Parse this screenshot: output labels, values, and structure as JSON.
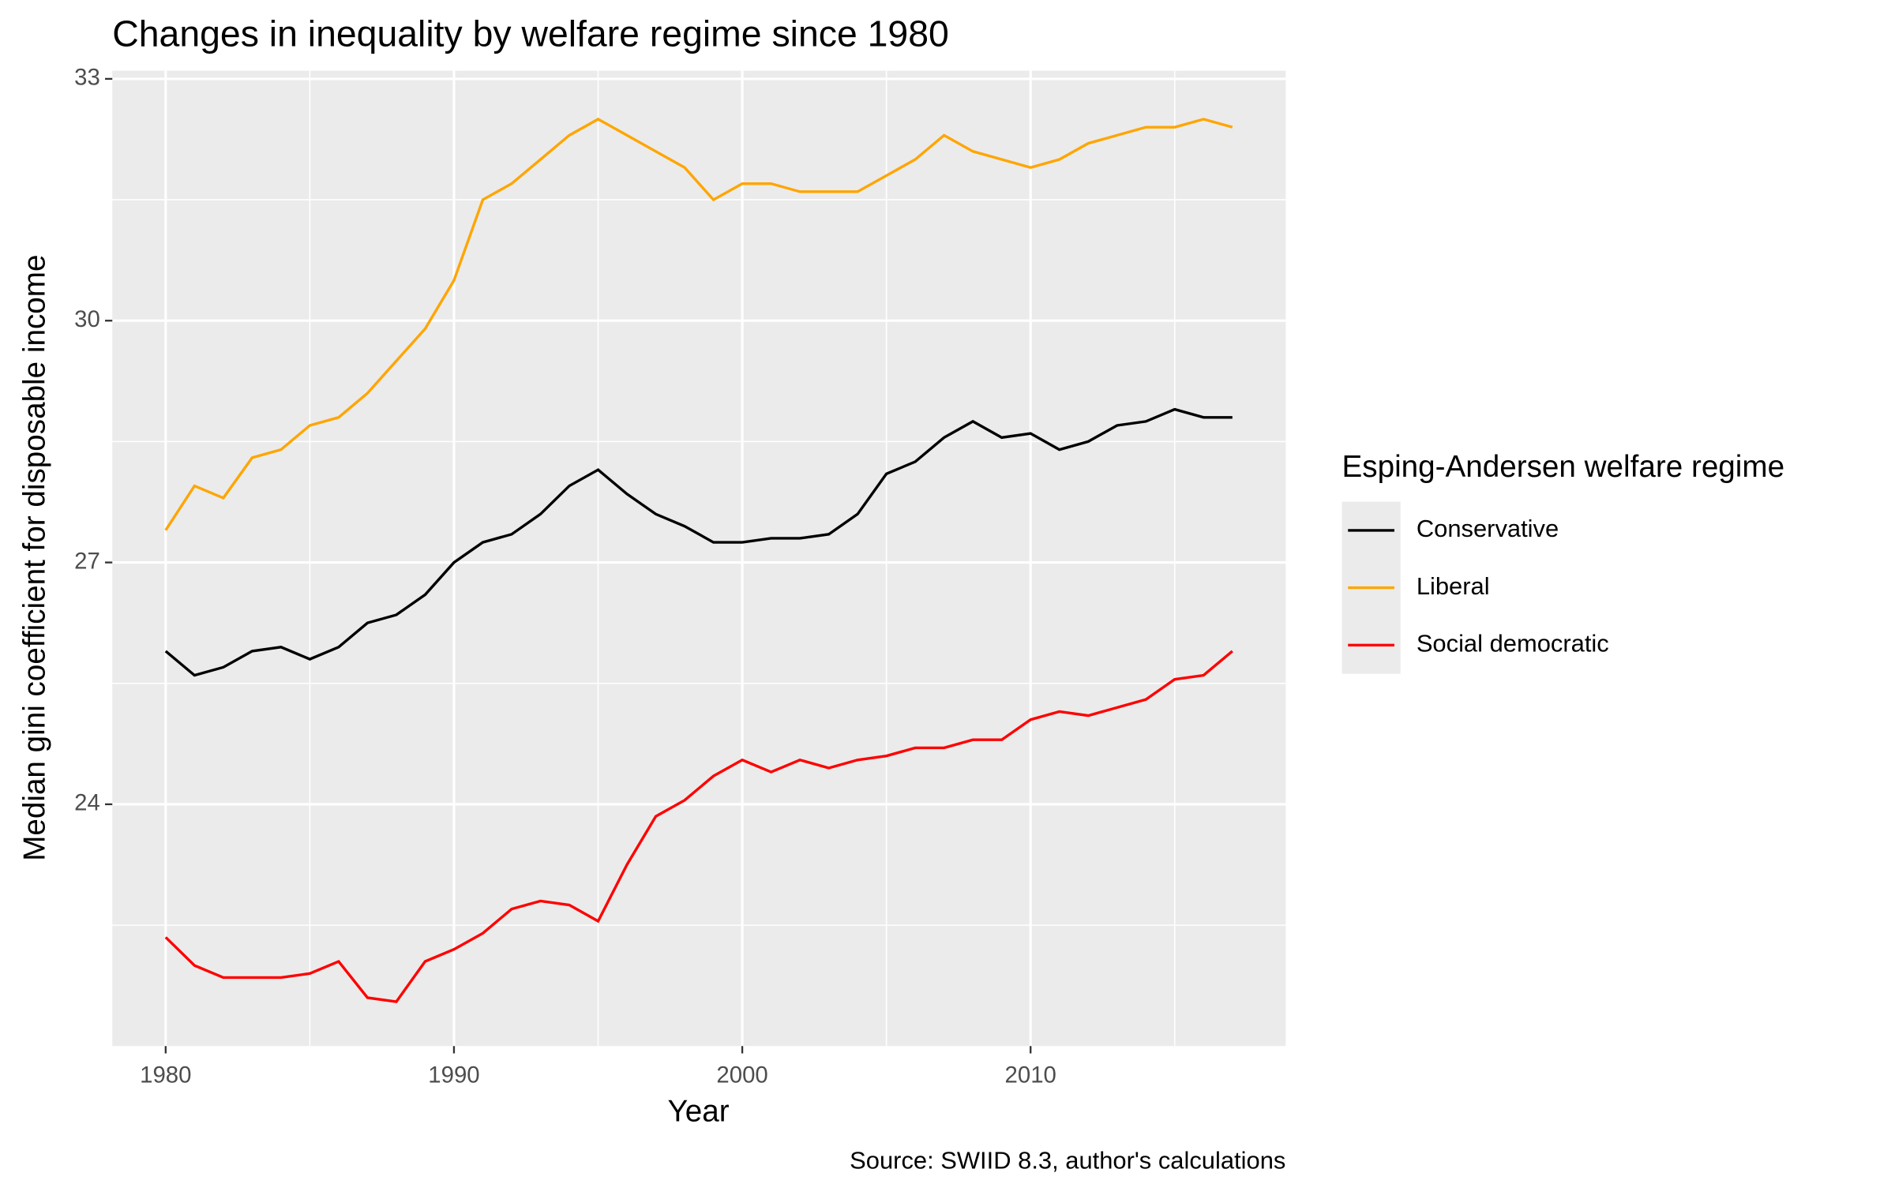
{
  "chart_data": {
    "type": "line",
    "title": "Changes in inequality by welfare regime since 1980",
    "x_label": "Year",
    "y_label": "Median gini coefficient for disposable income",
    "caption": "Source: SWIID 8.3, author's calculations",
    "legend_title": "Esping-Andersen welfare regime",
    "x": [
      1980,
      1981,
      1982,
      1983,
      1984,
      1985,
      1986,
      1987,
      1988,
      1989,
      1990,
      1991,
      1992,
      1993,
      1994,
      1995,
      1996,
      1997,
      1998,
      1999,
      2000,
      2001,
      2002,
      2003,
      2004,
      2005,
      2006,
      2007,
      2008,
      2009,
      2010,
      2011,
      2012,
      2013,
      2014,
      2015,
      2016,
      2017
    ],
    "series": [
      {
        "name": "Conservative",
        "color": "#000000",
        "values": [
          25.9,
          25.6,
          25.7,
          25.9,
          25.95,
          25.8,
          25.95,
          26.25,
          26.35,
          26.6,
          27.0,
          27.25,
          27.35,
          27.6,
          27.95,
          28.15,
          27.85,
          27.6,
          27.45,
          27.25,
          27.25,
          27.3,
          27.3,
          27.35,
          27.6,
          28.1,
          28.25,
          28.55,
          28.75,
          28.55,
          28.6,
          28.4,
          28.5,
          28.7,
          28.75,
          28.9,
          28.8,
          28.8
        ]
      },
      {
        "name": "Liberal",
        "color": "#ffa500",
        "values": [
          27.4,
          27.95,
          27.8,
          28.3,
          28.4,
          28.7,
          28.8,
          29.1,
          29.5,
          29.9,
          30.5,
          31.5,
          31.7,
          32.0,
          32.3,
          32.5,
          32.3,
          32.1,
          31.9,
          31.5,
          31.7,
          31.7,
          31.6,
          31.6,
          31.6,
          31.8,
          32.0,
          32.3,
          32.1,
          32.0,
          31.9,
          32.0,
          32.2,
          32.3,
          32.4,
          32.4,
          32.5,
          32.4
        ]
      },
      {
        "name": "Social democratic",
        "color": "#ff0000",
        "values": [
          22.35,
          22.0,
          21.85,
          21.85,
          21.85,
          21.9,
          22.05,
          21.6,
          21.55,
          22.05,
          22.2,
          22.4,
          22.7,
          22.8,
          22.75,
          22.55,
          23.25,
          23.85,
          24.05,
          24.35,
          24.55,
          24.4,
          24.55,
          24.45,
          24.55,
          24.6,
          24.7,
          24.7,
          24.8,
          24.8,
          25.05,
          25.15,
          25.1,
          25.2,
          25.3,
          25.55,
          25.6,
          25.9
        ]
      }
    ],
    "xlim": [
      1978.15,
      2018.85
    ],
    "xticks": [
      1980,
      1990,
      2000,
      2010
    ],
    "ylim": [
      21.0,
      33.1
    ],
    "yticks": [
      24,
      27,
      30,
      33
    ],
    "grid": true,
    "legend_position": "right"
  }
}
